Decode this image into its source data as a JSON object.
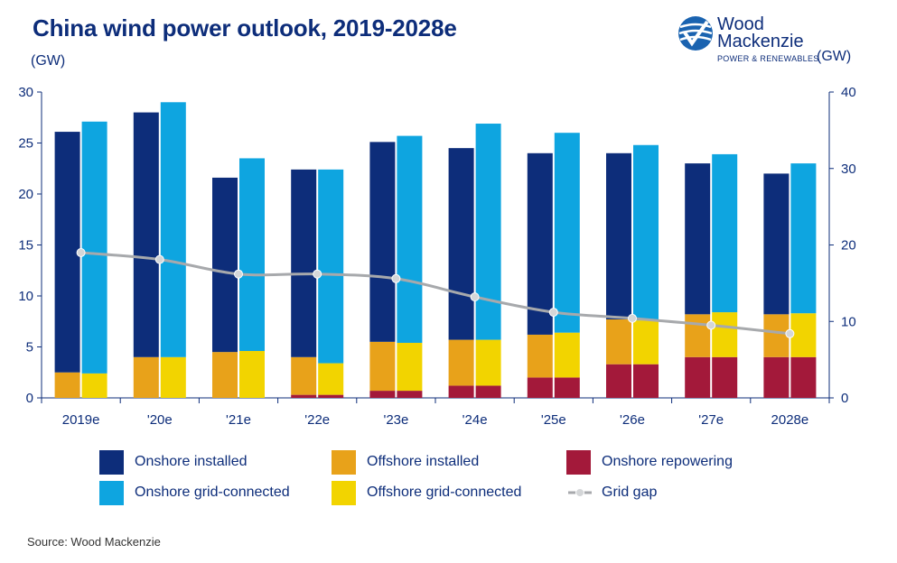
{
  "title": "China wind power outlook, 2019-2028e",
  "unit_left": "(GW)",
  "unit_right": "(GW)",
  "logo": {
    "line1": "Wood",
    "line2": "Mackenzie",
    "sub": "POWER & RENEWABLES"
  },
  "source": "Source: Wood Mackenzie",
  "colors": {
    "onshore_installed": "#0d2d7a",
    "onshore_grid": "#0ea5e0",
    "offshore_installed": "#e8a21a",
    "offshore_grid": "#f2d400",
    "onshore_repowering": "#a3193a",
    "grid_gap": "#a7a9ac",
    "axis": "#0d2d7a"
  },
  "legend": [
    {
      "label": "Onshore installed",
      "key": "onshore_installed",
      "type": "box"
    },
    {
      "label": "Offshore installed",
      "key": "offshore_installed",
      "type": "box"
    },
    {
      "label": "Onshore repowering",
      "key": "onshore_repowering",
      "type": "box"
    },
    {
      "label": "Onshore grid-connected",
      "key": "onshore_grid",
      "type": "box"
    },
    {
      "label": "Offshore grid-connected",
      "key": "offshore_grid",
      "type": "box"
    },
    {
      "label": "Grid gap",
      "key": "grid_gap",
      "type": "line"
    }
  ],
  "chart_data": {
    "type": "bar",
    "categories": [
      "2019e",
      "'20e",
      "'21e",
      "'22e",
      "'23e",
      "'24e",
      "'25e",
      "'26e",
      "'27e",
      "2028e"
    ],
    "stacked_pairs": true,
    "y_left": {
      "lim": [
        0,
        30
      ],
      "ticks": [
        0,
        5,
        10,
        15,
        20,
        25,
        30
      ]
    },
    "y_right": {
      "lim": [
        0,
        40
      ],
      "ticks": [
        0,
        10,
        20,
        30,
        40
      ]
    },
    "installed": [
      {
        "name": "Onshore repowering",
        "key": "onshore_repowering",
        "values": [
          0,
          0,
          0,
          0.3,
          0.7,
          1.2,
          2.0,
          3.3,
          4.0,
          4.0
        ]
      },
      {
        "name": "Offshore installed",
        "key": "offshore_installed",
        "values": [
          2.5,
          4.0,
          4.5,
          3.7,
          4.8,
          4.5,
          4.2,
          4.4,
          4.2,
          4.2
        ]
      },
      {
        "name": "Onshore installed",
        "key": "onshore_installed",
        "values": [
          23.6,
          24.0,
          17.1,
          18.4,
          19.6,
          18.8,
          17.8,
          16.3,
          14.8,
          13.8
        ]
      }
    ],
    "grid_connected": [
      {
        "name": "Onshore repowering",
        "key": "onshore_repowering",
        "values": [
          0,
          0,
          0,
          0.3,
          0.7,
          1.2,
          2.0,
          3.3,
          4.0,
          4.0
        ]
      },
      {
        "name": "Offshore grid-connected",
        "key": "offshore_grid",
        "values": [
          2.4,
          4.0,
          4.6,
          3.1,
          4.7,
          4.5,
          4.4,
          4.3,
          4.4,
          4.3
        ]
      },
      {
        "name": "Onshore grid-connected",
        "key": "onshore_grid",
        "values": [
          24.7,
          25.0,
          18.9,
          19.0,
          20.3,
          21.2,
          19.6,
          17.2,
          15.5,
          14.7
        ]
      }
    ],
    "line": {
      "name": "Grid gap",
      "key": "grid_gap",
      "axis": "right",
      "values": [
        19.0,
        18.1,
        16.2,
        16.2,
        15.6,
        13.2,
        11.2,
        10.4,
        9.5,
        8.4
      ]
    }
  }
}
